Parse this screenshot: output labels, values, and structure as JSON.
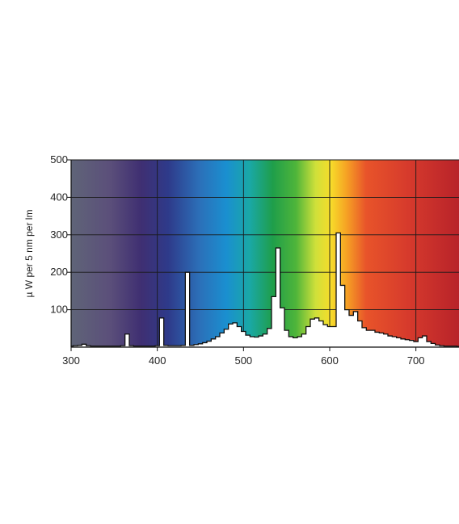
{
  "chart_data": {
    "type": "area",
    "title": "",
    "xlabel": "",
    "ylabel": "µ W per 5 nm per lm",
    "xlim": [
      300,
      750
    ],
    "ylim": [
      0,
      500
    ],
    "x_ticks": [
      "300",
      "400",
      "500",
      "600",
      "700"
    ],
    "y_ticks": [
      "100",
      "200",
      "300",
      "400",
      "500"
    ],
    "grid": true,
    "background": "visible-spectrum gradient",
    "series": [
      {
        "x": [
          300,
          305,
          310,
          315,
          320,
          325,
          330,
          335,
          340,
          345,
          350,
          355,
          360,
          365,
          370,
          375,
          380,
          385,
          390,
          395,
          400,
          405,
          410,
          415,
          420,
          425,
          430,
          435,
          440,
          445,
          450,
          455,
          460,
          465,
          470,
          475,
          480,
          485,
          490,
          495,
          500,
          505,
          510,
          515,
          520,
          525,
          530,
          535,
          540,
          545,
          550,
          555,
          560,
          565,
          570,
          575,
          580,
          585,
          590,
          595,
          600,
          605,
          610,
          615,
          620,
          625,
          630,
          635,
          640,
          645,
          650,
          655,
          660,
          665,
          670,
          675,
          680,
          685,
          690,
          695,
          700,
          705,
          710,
          715,
          720,
          725,
          730,
          735,
          740,
          745,
          750
        ],
        "values": [
          3,
          4,
          5,
          8,
          4,
          3,
          3,
          3,
          3,
          3,
          3,
          3,
          4,
          35,
          4,
          3,
          3,
          3,
          3,
          3,
          4,
          78,
          5,
          4,
          4,
          4,
          5,
          200,
          5,
          7,
          9,
          12,
          16,
          22,
          28,
          38,
          48,
          62,
          65,
          55,
          42,
          32,
          28,
          27,
          30,
          35,
          50,
          135,
          265,
          105,
          45,
          28,
          25,
          28,
          35,
          55,
          75,
          78,
          70,
          60,
          55,
          55,
          305,
          165,
          100,
          85,
          95,
          70,
          52,
          45,
          45,
          40,
          38,
          35,
          30,
          28,
          25,
          22,
          20,
          18,
          15,
          25,
          30,
          15,
          10,
          6,
          4,
          3,
          3,
          3,
          2
        ]
      }
    ]
  }
}
